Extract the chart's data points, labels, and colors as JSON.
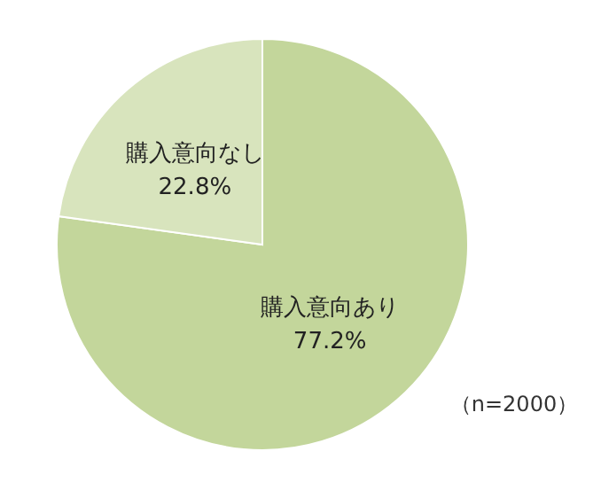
{
  "chart_data": {
    "type": "pie",
    "categories": [
      "購入意向あり",
      "購入意向なし"
    ],
    "values": [
      77.2,
      22.8
    ],
    "colors": [
      "#c3d69b",
      "#d8e4bd"
    ],
    "value_labels": [
      "77.2%",
      "22.8%"
    ],
    "annotations": [
      "（n=2000）"
    ],
    "legend": false
  }
}
